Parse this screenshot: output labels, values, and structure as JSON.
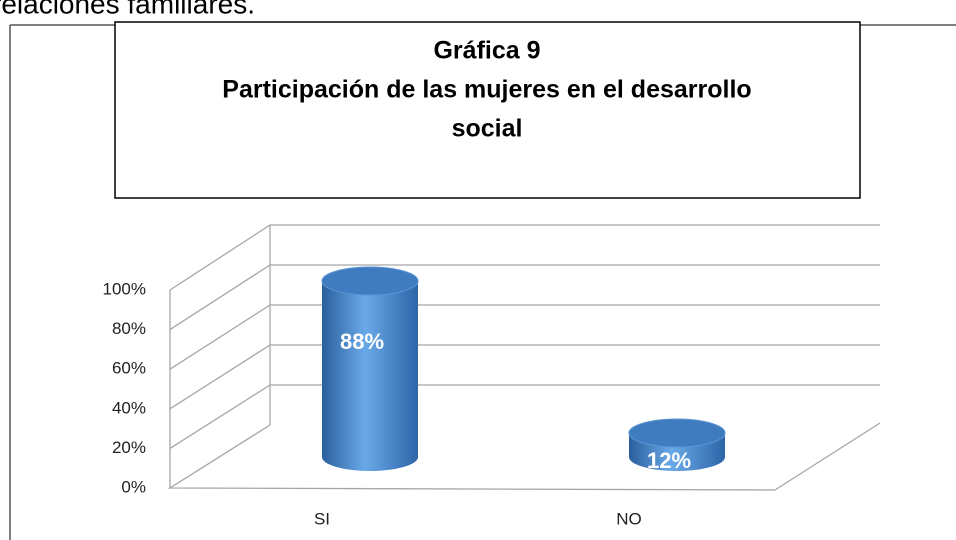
{
  "page_text": "relaciones familiares.",
  "chart_data": {
    "type": "bar3d",
    "title": [
      "Gráfica 9",
      "Participación de las mujeres en el desarrollo",
      "social"
    ],
    "categories": [
      "SI",
      "NO"
    ],
    "values": [
      88,
      12
    ],
    "value_labels": [
      "88%",
      "12%"
    ],
    "color": "#4a8ad0",
    "ylim": [
      0,
      100
    ],
    "yticks": [
      {
        "value": 0,
        "label": "0%"
      },
      {
        "value": 20,
        "label": "20%"
      },
      {
        "value": 40,
        "label": "40%"
      },
      {
        "value": 60,
        "label": "60%"
      },
      {
        "value": 80,
        "label": "80%"
      },
      {
        "value": 100,
        "label": "100%"
      }
    ],
    "grid": true
  }
}
